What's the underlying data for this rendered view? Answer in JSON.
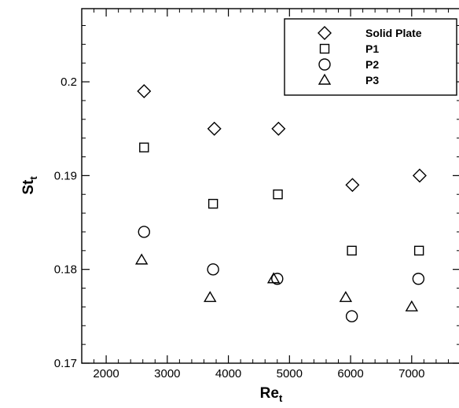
{
  "chart_data": {
    "type": "scatter",
    "title": "",
    "xlabel": "Re",
    "xlabel_sub": "t",
    "ylabel": "St",
    "ylabel_sub": "t",
    "xlim": [
      1600,
      7800
    ],
    "ylim": [
      0.17,
      0.2078
    ],
    "x_ticks": [
      2000,
      3000,
      4000,
      5000,
      6000,
      7000
    ],
    "y_ticks": [
      0.17,
      0.18,
      0.19,
      0.2
    ],
    "y_tick_labels": [
      "0.17",
      "0.18",
      "0.19",
      "0.2"
    ],
    "x_minor_step": 200,
    "y_minor_step": 0.002,
    "grid": false,
    "legend_position": "top-right",
    "series": [
      {
        "name": "Solid Plate",
        "marker": "diamond",
        "x": [
          2620,
          3770,
          4820,
          6030,
          7130
        ],
        "y": [
          0.199,
          0.195,
          0.195,
          0.189,
          0.19
        ]
      },
      {
        "name": "P1",
        "marker": "square",
        "x": [
          2620,
          3750,
          4810,
          6020,
          7120
        ],
        "y": [
          0.193,
          0.187,
          0.188,
          0.182,
          0.182
        ]
      },
      {
        "name": "P2",
        "marker": "circle",
        "x": [
          2620,
          3750,
          4800,
          6020,
          7110
        ],
        "y": [
          0.184,
          0.18,
          0.179,
          0.175,
          0.179
        ]
      },
      {
        "name": "P3",
        "marker": "triangle",
        "x": [
          2580,
          3700,
          4740,
          5920,
          7000
        ],
        "y": [
          0.181,
          0.177,
          0.179,
          0.177,
          0.176
        ]
      }
    ]
  }
}
